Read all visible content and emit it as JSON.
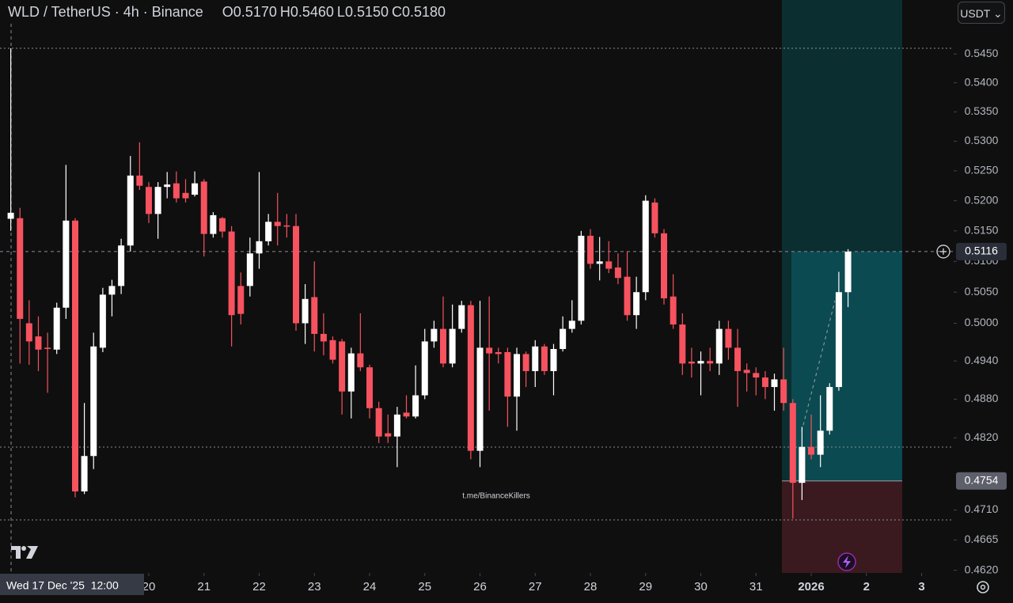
{
  "header": {
    "symbol": "WLD / TetherUS · 4h · Binance",
    "ohlc": [
      {
        "label": "O",
        "value": "0.5170"
      },
      {
        "label": "H",
        "value": "0.5460"
      },
      {
        "label": "L",
        "value": "0.5150"
      },
      {
        "label": "C",
        "value": "0.5180"
      }
    ]
  },
  "currency": "USDT",
  "watermark": "t.me/BinanceKillers",
  "crosshair_label": "Wed 17 Dec '25  12:00",
  "chart_data": {
    "type": "candlestick",
    "log_scale": true,
    "up_color": "#ffffff",
    "down_color": "#f7525f",
    "last_price": 0.5116,
    "entry_price": 0.4754,
    "xlim": [
      17.305,
      34.58
    ],
    "xticks": [
      20,
      21,
      22,
      23,
      24,
      25,
      26,
      27,
      28,
      29,
      30,
      31,
      {
        "value": 32,
        "label": "2026"
      },
      {
        "value": 33,
        "label": "2"
      },
      {
        "value": 34,
        "label": "3"
      }
    ],
    "ylim": [
      0.4616,
      0.5545
    ],
    "yticks": [
      {
        "value": 0.462,
        "label": "0.4620"
      },
      0.4665,
      {
        "value": 0.471,
        "label": "0.4710"
      },
      {
        "value": 0.482,
        "label": "0.4820"
      },
      {
        "value": 0.488,
        "label": "0.4880"
      },
      {
        "value": 0.494,
        "label": "0.4940"
      },
      {
        "value": 0.5,
        "label": "0.5000"
      },
      {
        "value": 0.505,
        "label": "0.5050"
      },
      {
        "value": 0.51,
        "label": "0.5100"
      },
      {
        "value": 0.515,
        "label": "0.5150"
      },
      {
        "value": 0.52,
        "label": "0.5200"
      },
      {
        "value": 0.525,
        "label": "0.5250"
      },
      {
        "value": 0.53,
        "label": "0.5300"
      },
      {
        "value": 0.535,
        "label": "0.5350"
      },
      {
        "value": 0.54,
        "label": "0.5400"
      },
      {
        "value": 0.545,
        "label": "0.5450"
      }
    ],
    "x": [
      17.5,
      17.667,
      17.833,
      18,
      18.167,
      18.333,
      18.5,
      18.667,
      18.833,
      19,
      19.167,
      19.333,
      19.5,
      19.667,
      19.833,
      20,
      20.167,
      20.333,
      20.5,
      20.667,
      20.833,
      21,
      21.167,
      21.333,
      21.5,
      21.667,
      21.833,
      22,
      22.167,
      22.333,
      22.5,
      22.667,
      22.833,
      23,
      23.167,
      23.333,
      23.5,
      23.667,
      23.833,
      24,
      24.167,
      24.333,
      24.5,
      24.667,
      24.833,
      25,
      25.167,
      25.333,
      25.5,
      25.667,
      25.833,
      26,
      26.167,
      26.333,
      26.5,
      26.667,
      26.833,
      27,
      27.167,
      27.333,
      27.5,
      27.667,
      27.833,
      28,
      28.167,
      28.333,
      28.5,
      28.667,
      28.833,
      29,
      29.167,
      29.333,
      29.5,
      29.667,
      29.833,
      30,
      30.167,
      30.333,
      30.5,
      30.667,
      30.833,
      31,
      31.167,
      31.333,
      31.5,
      31.667,
      31.833,
      32,
      32.167,
      32.333,
      32.5,
      32.667
    ],
    "open": [
      0.517,
      0.5171,
      0.5,
      0.4979,
      0.4961,
      0.4958,
      0.5025,
      0.5167,
      0.4738,
      0.4792,
      0.4961,
      0.5046,
      0.506,
      0.5126,
      0.5242,
      0.5223,
      0.5178,
      0.5223,
      0.5229,
      0.5213,
      0.521,
      0.5232,
      0.5145,
      0.5171,
      0.5149,
      0.506,
      0.506,
      0.5113,
      0.5133,
      0.5165,
      0.5159,
      0.5158,
      0.5,
      0.5042,
      0.4983,
      0.4973,
      0.4971,
      0.4892,
      0.4952,
      0.493,
      0.4866,
      0.4827,
      0.4822,
      0.4859,
      0.4853,
      0.4886,
      0.4971,
      0.4991,
      0.4936,
      0.4991,
      0.5029,
      0.48,
      0.4961,
      0.4954,
      0.4954,
      0.4884,
      0.4951,
      0.4924,
      0.4963,
      0.4924,
      0.4959,
      0.4991,
      0.5004,
      0.5142,
      0.5096,
      0.51,
      0.509,
      0.5075,
      0.5013,
      0.505,
      0.5197,
      0.5146,
      0.5043,
      0.4998,
      0.4939,
      0.4936,
      0.494,
      0.4936,
      0.4991,
      0.4961,
      0.4926,
      0.4921,
      0.4914,
      0.4899,
      0.4911,
      0.4874,
      0.4751,
      0.4806,
      0.4794,
      0.4831,
      0.4899,
      0.505
    ],
    "high": [
      0.546,
      0.5188,
      0.5037,
      0.5011,
      0.4985,
      0.5033,
      0.526,
      0.5171,
      0.4874,
      0.4985,
      0.5057,
      0.507,
      0.5137,
      0.5275,
      0.5298,
      0.5231,
      0.5231,
      0.5248,
      0.5249,
      0.5236,
      0.5249,
      0.5236,
      0.5181,
      0.5173,
      0.5158,
      0.5082,
      0.5139,
      0.5248,
      0.5178,
      0.5213,
      0.5178,
      0.5178,
      0.5063,
      0.51,
      0.5016,
      0.4979,
      0.4975,
      0.4961,
      0.5016,
      0.4934,
      0.4876,
      0.4856,
      0.4868,
      0.4886,
      0.4933,
      0.4991,
      0.5004,
      0.5043,
      0.503,
      0.5036,
      0.5036,
      0.5036,
      0.5043,
      0.4961,
      0.4961,
      0.4961,
      0.4955,
      0.4973,
      0.4967,
      0.4967,
      0.5011,
      0.5037,
      0.515,
      0.5153,
      0.514,
      0.5133,
      0.5113,
      0.5116,
      0.5075,
      0.5209,
      0.5204,
      0.5153,
      0.5079,
      0.5016,
      0.4961,
      0.4955,
      0.4961,
      0.5004,
      0.5004,
      0.4991,
      0.4936,
      0.493,
      0.4924,
      0.492,
      0.4961,
      0.488,
      0.4837,
      0.4856,
      0.4886,
      0.4905,
      0.5083,
      0.512
    ],
    "low": [
      0.515,
      0.4936,
      0.4934,
      0.4924,
      0.489,
      0.4951,
      0.5007,
      0.4729,
      0.4734,
      0.4772,
      0.4954,
      0.5011,
      0.5047,
      0.5116,
      0.5218,
      0.5163,
      0.5137,
      0.5204,
      0.5197,
      0.5197,
      0.5207,
      0.5108,
      0.5139,
      0.5139,
      0.4963,
      0.4998,
      0.5043,
      0.5088,
      0.5126,
      0.5126,
      0.5139,
      0.4988,
      0.4967,
      0.4955,
      0.4949,
      0.4936,
      0.4856,
      0.485,
      0.4924,
      0.485,
      0.4812,
      0.4812,
      0.4775,
      0.485,
      0.485,
      0.488,
      0.4961,
      0.493,
      0.493,
      0.4985,
      0.4787,
      0.4775,
      0.4862,
      0.4936,
      0.4837,
      0.4831,
      0.4899,
      0.4899,
      0.4918,
      0.4886,
      0.4955,
      0.4985,
      0.4998,
      0.5088,
      0.5069,
      0.5081,
      0.5063,
      0.5004,
      0.4991,
      0.5037,
      0.5139,
      0.503,
      0.4991,
      0.4918,
      0.4914,
      0.4886,
      0.4924,
      0.4918,
      0.4942,
      0.4868,
      0.4892,
      0.4886,
      0.488,
      0.4862,
      0.4862,
      0.4697,
      0.4725,
      0.4787,
      0.4775,
      0.4825,
      0.4893,
      0.5026
    ],
    "close": [
      0.518,
      0.5007,
      0.4971,
      0.4958,
      0.4959,
      0.5025,
      0.5167,
      0.4738,
      0.4792,
      0.4963,
      0.5046,
      0.506,
      0.5126,
      0.5242,
      0.5225,
      0.5178,
      0.5223,
      0.5227,
      0.5204,
      0.5204,
      0.5229,
      0.5145,
      0.5176,
      0.5149,
      0.5013,
      0.5015,
      0.5113,
      0.5133,
      0.5165,
      0.5158,
      0.5157,
      0.5,
      0.5039,
      0.4983,
      0.4971,
      0.4942,
      0.4892,
      0.4952,
      0.493,
      0.4866,
      0.4822,
      0.4822,
      0.4856,
      0.4853,
      0.4886,
      0.4971,
      0.4991,
      0.4936,
      0.4991,
      0.5029,
      0.48,
      0.4961,
      0.4952,
      0.4951,
      0.4884,
      0.4951,
      0.4924,
      0.4963,
      0.4924,
      0.4959,
      0.4991,
      0.5004,
      0.5142,
      0.5096,
      0.51,
      0.5088,
      0.5073,
      0.5013,
      0.505,
      0.52,
      0.5146,
      0.504,
      0.4998,
      0.4936,
      0.4936,
      0.494,
      0.4936,
      0.4991,
      0.4961,
      0.4924,
      0.4921,
      0.4914,
      0.4899,
      0.4911,
      0.4874,
      0.4751,
      0.4806,
      0.4794,
      0.4831,
      0.4899,
      0.505,
      0.5116
    ]
  }
}
